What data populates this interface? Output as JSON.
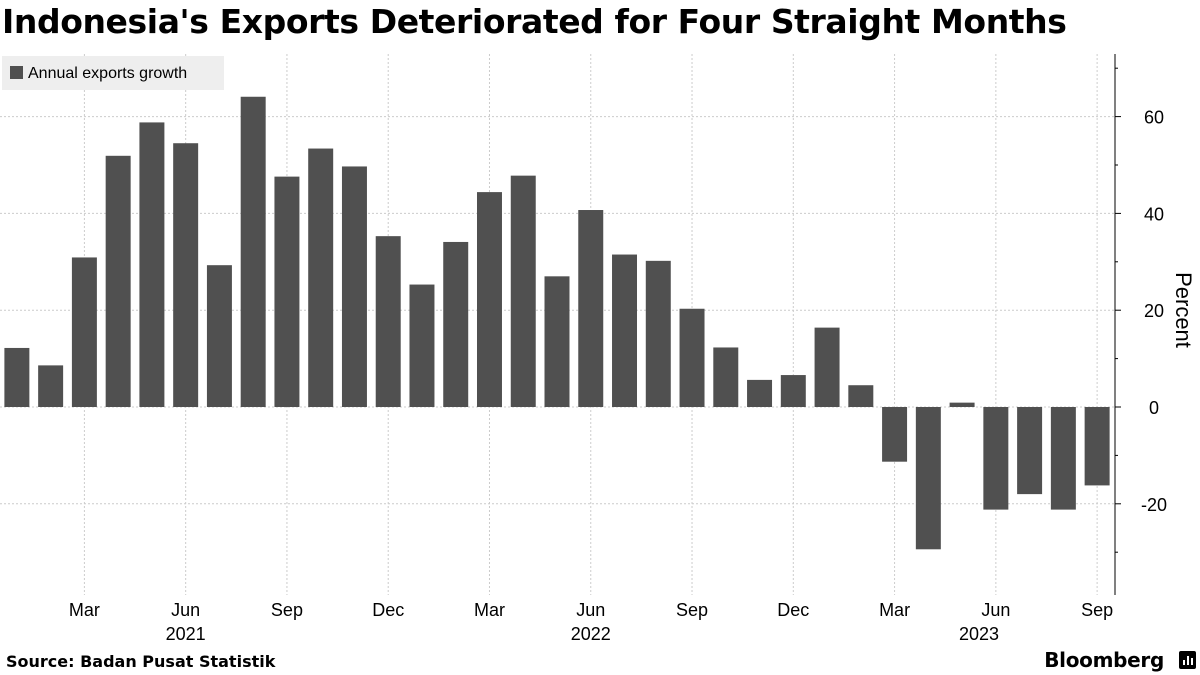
{
  "title": "Indonesia's Exports Deteriorated for Four Straight Months",
  "source": "Source: Badan Pusat Statistik",
  "brand": "Bloomberg",
  "colors": {
    "bar": "#505050",
    "grid": "#cccccc",
    "legend_bg": "#eeeeee",
    "axis": "#000000"
  },
  "chart_data": {
    "type": "bar",
    "title": "Indonesia's Exports Deteriorated for Four Straight Months",
    "series": [
      {
        "name": "Annual exports growth",
        "categories": [
          "Jan 2021",
          "Feb 2021",
          "Mar 2021",
          "Apr 2021",
          "May 2021",
          "Jun 2021",
          "Jul 2021",
          "Aug 2021",
          "Sep 2021",
          "Oct 2021",
          "Nov 2021",
          "Dec 2021",
          "Jan 2022",
          "Feb 2022",
          "Mar 2022",
          "Apr 2022",
          "May 2022",
          "Jun 2022",
          "Jul 2022",
          "Aug 2022",
          "Sep 2022",
          "Oct 2022",
          "Nov 2022",
          "Dec 2022",
          "Jan 2023",
          "Feb 2023",
          "Mar 2023",
          "Apr 2023",
          "May 2023",
          "Jun 2023",
          "Jul 2023",
          "Aug 2023",
          "Sep 2023"
        ],
        "values": [
          12.2,
          8.6,
          30.9,
          51.9,
          58.8,
          54.5,
          29.3,
          64.1,
          47.6,
          53.4,
          49.7,
          35.3,
          25.3,
          34.1,
          44.4,
          47.8,
          27.0,
          40.7,
          31.5,
          30.2,
          20.3,
          12.3,
          5.6,
          6.6,
          16.4,
          4.5,
          -11.3,
          -29.4,
          0.9,
          -21.2,
          -18.0,
          -21.2,
          -16.2
        ]
      }
    ],
    "x_tick_labels": [
      {
        "label": "Mar",
        "index": 2
      },
      {
        "label": "Jun",
        "index": 5
      },
      {
        "label": "Sep",
        "index": 8
      },
      {
        "label": "Dec",
        "index": 11
      },
      {
        "label": "Mar",
        "index": 14
      },
      {
        "label": "Jun",
        "index": 17
      },
      {
        "label": "Sep",
        "index": 20
      },
      {
        "label": "Dec",
        "index": 23
      },
      {
        "label": "Mar",
        "index": 26
      },
      {
        "label": "Jun",
        "index": 29
      },
      {
        "label": "Sep",
        "index": 32
      }
    ],
    "year_labels": [
      {
        "label": "2021",
        "index": 5
      },
      {
        "label": "2022",
        "index": 17
      },
      {
        "label": "2023",
        "index": 28.5
      }
    ],
    "yticks": [
      -20,
      0,
      20,
      40,
      60
    ],
    "ylim": [
      -35,
      73
    ],
    "ylabel": "Percent",
    "legend": "Annual exports growth",
    "legend_position": "top-left",
    "grid": true
  }
}
